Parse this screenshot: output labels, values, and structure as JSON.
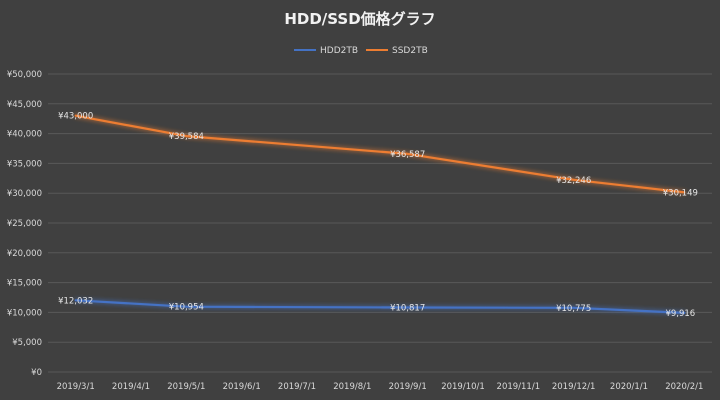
{
  "chart_data": {
    "type": "line",
    "title": "HDD/SSD価格グラフ",
    "categories": [
      "2019/3/1",
      "2019/4/1",
      "2019/5/1",
      "2019/6/1",
      "2019/7/1",
      "2019/8/1",
      "2019/9/1",
      "2019/10/1",
      "2019/11/1",
      "2019/12/1",
      "2020/1/1",
      "2020/2/1"
    ],
    "ylim": [
      0,
      50000
    ],
    "yticks": [
      "¥0",
      "¥5,000",
      "¥10,000",
      "¥15,000",
      "¥20,000",
      "¥25,000",
      "¥30,000",
      "¥35,000",
      "¥40,000",
      "¥45,000",
      "¥50,000"
    ],
    "grid": true,
    "legend_position": "top",
    "series": [
      {
        "name": "HDD2TB",
        "color": "#4472C4",
        "points": [
          {
            "x": "2019/3/1",
            "y": 12032,
            "label": "¥12,032"
          },
          {
            "x": "2019/5/1",
            "y": 10954,
            "label": "¥10,954"
          },
          {
            "x": "2019/9/1",
            "y": 10817,
            "label": "¥10,817"
          },
          {
            "x": "2019/12/1",
            "y": 10775,
            "label": "¥10,775"
          },
          {
            "x": "2020/2/1",
            "y": 9916,
            "label": "¥9,916"
          }
        ]
      },
      {
        "name": "SSD2TB",
        "color": "#ED7D31",
        "points": [
          {
            "x": "2019/3/1",
            "y": 43000,
            "label": "¥43,000"
          },
          {
            "x": "2019/5/1",
            "y": 39584,
            "label": "¥39,584"
          },
          {
            "x": "2019/9/1",
            "y": 36587,
            "label": "¥36,587"
          },
          {
            "x": "2019/12/1",
            "y": 32246,
            "label": "¥32,246"
          },
          {
            "x": "2020/2/1",
            "y": 30149,
            "label": "¥30,149"
          }
        ]
      }
    ]
  }
}
